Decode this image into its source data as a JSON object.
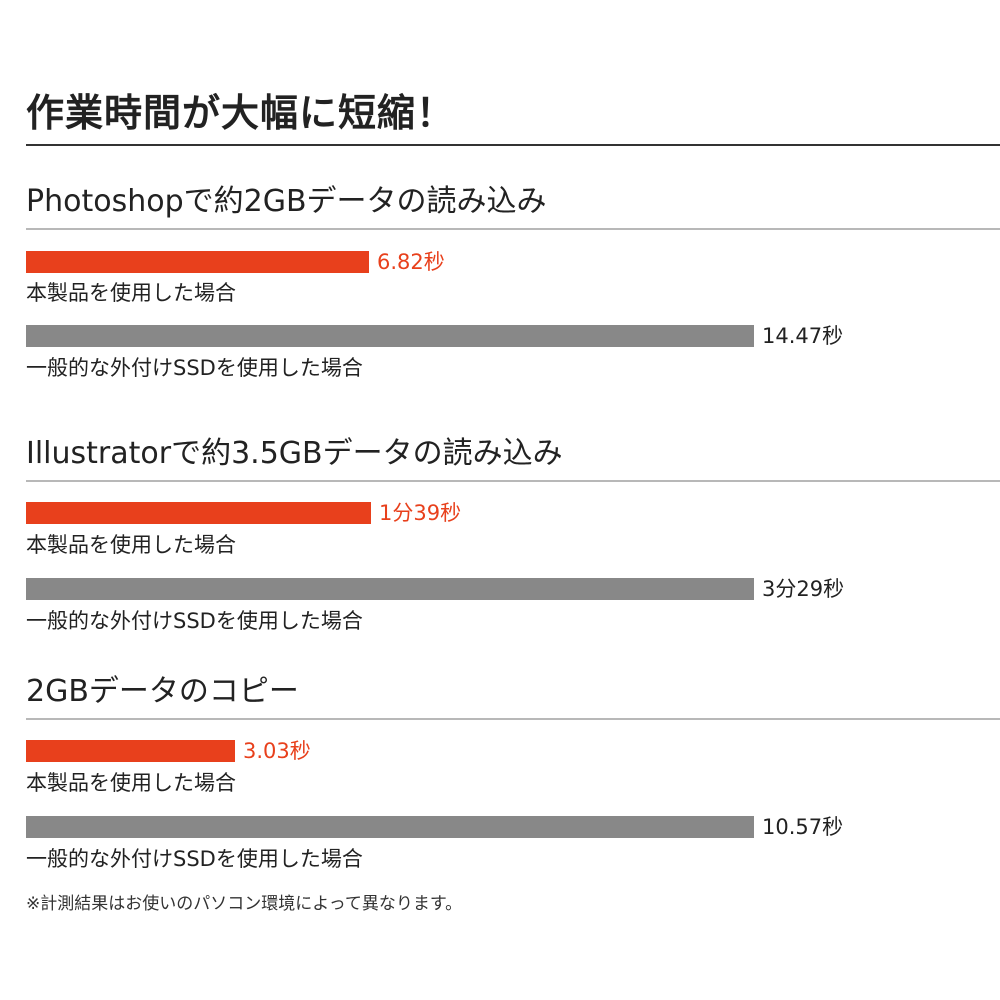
{
  "title": "作業時間が大幅に短縮！",
  "footnote": "※計測結果はお使いのパソコン環境によって異なります。",
  "colors": {
    "product": "#e8401c",
    "generic": "#888888",
    "product_text": "#e8401c",
    "generic_text": "#222222"
  },
  "chart_data": [
    {
      "type": "bar",
      "title": "Photoshopで約2GBデータの読み込み",
      "unit": "seconds",
      "categories": [
        "本製品を使用した場合",
        "一般的な外付けSSDを使用した場合"
      ],
      "values": [
        6.82,
        14.47
      ],
      "value_labels": [
        "6.82秒",
        "14.47秒"
      ]
    },
    {
      "type": "bar",
      "title": "Illustratorで約3.5GBデータの読み込み",
      "unit": "seconds",
      "categories": [
        "本製品を使用した場合",
        "一般的な外付けSSDを使用した場合"
      ],
      "values": [
        99,
        209
      ],
      "value_labels": [
        "1分39秒",
        "3分29秒"
      ]
    },
    {
      "type": "bar",
      "title": "2GBデータのコピー",
      "unit": "seconds",
      "categories": [
        "本製品を使用した場合",
        "一般的な外付けSSDを使用した場合"
      ],
      "values": [
        3.03,
        10.57
      ],
      "value_labels": [
        "3.03秒",
        "10.57秒"
      ]
    }
  ]
}
